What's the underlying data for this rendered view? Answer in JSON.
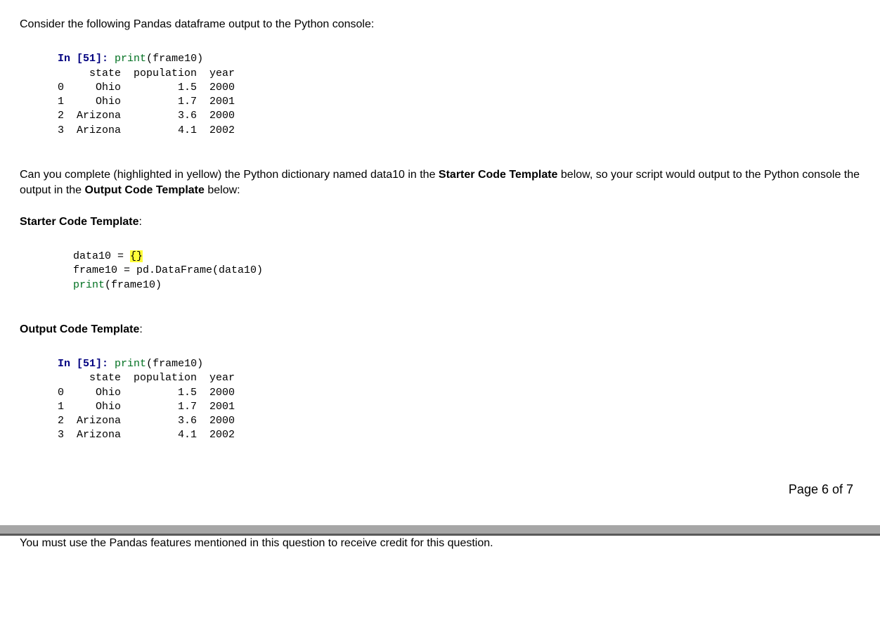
{
  "intro": "Consider the following Pandas dataframe output to the Python console:",
  "console1": {
    "prompt_in": "In [",
    "prompt_num": "51",
    "prompt_close": "]: ",
    "call_builtin": "print",
    "call_rest": "(frame10)",
    "header": "     state  population  year",
    "rows": [
      "0     Ohio         1.5  2000",
      "1     Ohio         1.7  2001",
      "2  Arizona         3.6  2000",
      "3  Arizona         4.1  2002"
    ]
  },
  "question_pre": "Can you complete (highlighted in yellow) the Python dictionary named data10 in the ",
  "question_bold1": "Starter Code Template",
  "question_mid": " below, so your script would output to the Python console the output in the ",
  "question_bold2": "Output Code Template",
  "question_post": " below:",
  "starter_heading": "Starter Code Template",
  "starter_colon": ":",
  "starter_code": {
    "line1_pre": "data10 = ",
    "line1_hl": "{}",
    "line2": "frame10 = pd.DataFrame(data10)",
    "line3_builtin": "print",
    "line3_rest": "(frame10)"
  },
  "output_heading": "Output Code Template",
  "output_colon": ":",
  "console2": {
    "prompt_in": "In [",
    "prompt_num": "51",
    "prompt_close": "]: ",
    "call_builtin": "print",
    "call_rest": "(frame10)",
    "header": "     state  population  year",
    "rows": [
      "0     Ohio         1.5  2000",
      "1     Ohio         1.7  2001",
      "2  Arizona         3.6  2000",
      "3  Arizona         4.1  2002"
    ]
  },
  "page_num": "Page 6 of 7",
  "credit_note": "You must use the Pandas features mentioned in this question to receive credit for this question."
}
